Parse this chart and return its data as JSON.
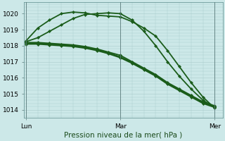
{
  "background_color": "#cce8e8",
  "grid_color": "#aacccc",
  "line_color": "#1a5c1a",
  "marker_color": "#1a5c1a",
  "title": "Pression niveau de la mer( hPa )",
  "x_ticks": [
    0,
    24,
    48
  ],
  "x_tick_labels": [
    "Lun",
    "Mar",
    "Mer"
  ],
  "ylim": [
    1013.5,
    1020.7
  ],
  "yticks": [
    1014,
    1015,
    1016,
    1017,
    1018,
    1019,
    1020
  ],
  "xlim": [
    -0.5,
    50
  ],
  "lines": [
    {
      "x": [
        0,
        3,
        6,
        9,
        12,
        15,
        18,
        21,
        24,
        27,
        30,
        33,
        36,
        39,
        42,
        45,
        48
      ],
      "y": [
        1018.3,
        1019.1,
        1019.6,
        1020.0,
        1020.1,
        1020.05,
        1019.9,
        1019.85,
        1019.8,
        1019.5,
        1019.1,
        1018.6,
        1017.7,
        1016.7,
        1015.7,
        1014.8,
        1014.1
      ],
      "lw": 1.3
    },
    {
      "x": [
        0,
        3,
        6,
        9,
        12,
        15,
        18,
        21,
        24,
        27,
        30,
        33,
        36,
        39,
        42,
        45,
        48
      ],
      "y": [
        1018.25,
        1018.5,
        1018.9,
        1019.3,
        1019.7,
        1019.95,
        1020.0,
        1020.05,
        1020.0,
        1019.6,
        1018.9,
        1018.0,
        1017.0,
        1016.1,
        1015.3,
        1014.6,
        1014.15
      ],
      "lw": 1.3
    },
    {
      "x": [
        0,
        3,
        6,
        9,
        12,
        15,
        18,
        21,
        24,
        27,
        30,
        33,
        36,
        39,
        42,
        45,
        48
      ],
      "y": [
        1018.2,
        1018.2,
        1018.15,
        1018.1,
        1018.05,
        1017.95,
        1017.8,
        1017.6,
        1017.4,
        1017.0,
        1016.6,
        1016.2,
        1015.7,
        1015.3,
        1014.9,
        1014.5,
        1014.25
      ],
      "lw": 1.3
    },
    {
      "x": [
        0,
        3,
        6,
        9,
        12,
        15,
        18,
        21,
        24,
        27,
        30,
        33,
        36,
        39,
        42,
        45,
        48
      ],
      "y": [
        1018.15,
        1018.15,
        1018.1,
        1018.05,
        1018.0,
        1017.9,
        1017.75,
        1017.55,
        1017.3,
        1016.95,
        1016.55,
        1016.15,
        1015.65,
        1015.25,
        1014.85,
        1014.45,
        1014.2
      ],
      "lw": 1.3
    },
    {
      "x": [
        0,
        3,
        6,
        9,
        12,
        15,
        18,
        21,
        24,
        27,
        30,
        33,
        36,
        39,
        42,
        45,
        48
      ],
      "y": [
        1018.1,
        1018.1,
        1018.05,
        1018.0,
        1017.95,
        1017.85,
        1017.7,
        1017.5,
        1017.25,
        1016.9,
        1016.5,
        1016.1,
        1015.6,
        1015.2,
        1014.8,
        1014.4,
        1014.15
      ],
      "lw": 1.3
    }
  ]
}
